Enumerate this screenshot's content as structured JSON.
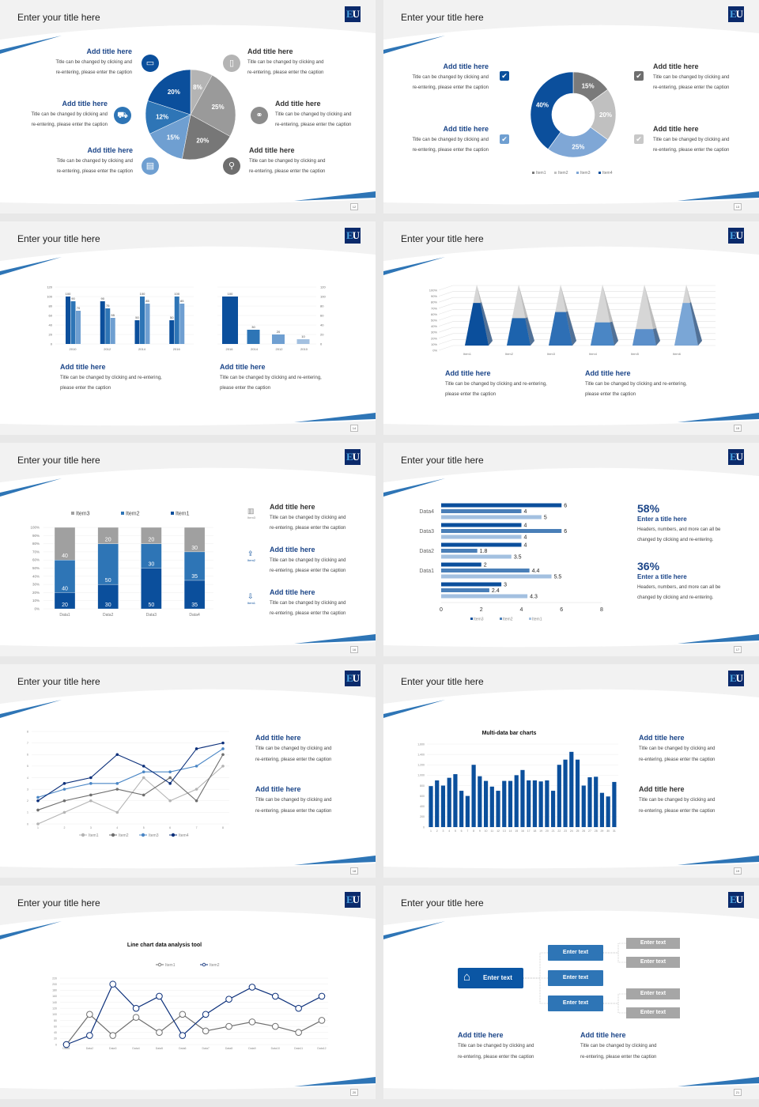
{
  "common": {
    "slide_title": "Enter your title here",
    "logo": "EU",
    "block_title": "Add title here",
    "cap1": "Title can be changed by clicking and",
    "cap2": "re-entering, please enter the caption",
    "capw1": "Title can be changed by clicking and re-entering,",
    "capw2": "please enter the caption"
  },
  "colors": {
    "dark_blue": "#0b4f9c",
    "mid_blue": "#2e75b6",
    "light_blue": "#6f9fd1",
    "pale_blue": "#a3c0e0",
    "title_blue": "#1b4588",
    "gray_light": "#b4b4b4",
    "gray": "#8c8c8c",
    "gray_dark": "#6e6e6e"
  },
  "pages": [
    "12",
    "13",
    "14",
    "15",
    "16",
    "17",
    "18",
    "19",
    "20",
    "21"
  ],
  "slide1": {
    "icons": [
      "monitor-icon",
      "car-icon",
      "book-icon",
      "phone-icon",
      "binoculars-icon",
      "bicycle-icon"
    ]
  },
  "slide5": {
    "icon_labels": [
      "Item3",
      "Item2",
      "Item1"
    ],
    "icons": [
      "bar-chart-icon",
      "upload-icon",
      "download-icon"
    ]
  },
  "slide6": {
    "stats": [
      {
        "value": "58%",
        "title": "Enter a title here",
        "line1": "Headers, numbers, and more can all be",
        "line2": "changed by clicking and re-entering."
      },
      {
        "value": "36%",
        "title": "Enter a title here",
        "line1": "Headers, numbers, and more can all be",
        "line2": "changed by clicking and re-entering."
      }
    ]
  },
  "slide10": {
    "root": "Enter text",
    "mid": [
      "Enter text",
      "Enter text",
      "Enter text"
    ],
    "leaves": [
      "Enter text",
      "Enter text",
      "Enter text",
      "Enter text"
    ]
  },
  "chart_data": [
    {
      "type": "pie",
      "slide": 1,
      "values": [
        8,
        25,
        20,
        15,
        12,
        20
      ],
      "labels": [
        "8%",
        "25%",
        "20%",
        "15%",
        "12%",
        "20%"
      ],
      "colors": [
        "#b4b4b4",
        "#9a9a9a",
        "#777777",
        "#6f9fd1",
        "#2e75b6",
        "#0b4f9c"
      ]
    },
    {
      "type": "pie",
      "variant": "donut",
      "slide": 2,
      "categories": [
        "Item1",
        "Item2",
        "Item3",
        "Item4"
      ],
      "values": [
        15,
        20,
        25,
        40
      ],
      "labels": [
        "15%",
        "20%",
        "25%",
        "40%"
      ],
      "colors": [
        "#7a7a7a",
        "#c0c0c0",
        "#7fa7d6",
        "#0b4f9c"
      ],
      "legend": "bottom"
    },
    {
      "type": "bar",
      "slide": 3,
      "categories": [
        "2010",
        "2012",
        "2014",
        "2016"
      ],
      "series": [
        {
          "values": [
            100,
            90,
            50,
            50
          ]
        },
        {
          "values": [
            90,
            75,
            100,
            100
          ]
        },
        {
          "values": [
            70,
            55,
            85,
            85
          ]
        }
      ],
      "ylim": [
        0,
        120
      ],
      "yticks": [
        0,
        20,
        40,
        60,
        80,
        100,
        120
      ]
    },
    {
      "type": "bar",
      "slide": 3,
      "categories": [
        "2016",
        "2014",
        "2012",
        "2010"
      ],
      "values": [
        100,
        30,
        20,
        10
      ],
      "ylim": [
        0,
        120
      ],
      "yticks": [
        0,
        20,
        40,
        60,
        80,
        100,
        120
      ],
      "axis": "right"
    },
    {
      "type": "bar",
      "variant": "3d-pyramid",
      "slide": 4,
      "categories": [
        "Item1",
        "Item2",
        "Item3",
        "Item4",
        "Item5",
        "Item6"
      ],
      "values": [
        70,
        45,
        55,
        38,
        27,
        70
      ],
      "ylim": [
        0,
        100
      ],
      "yticks": [
        "0%",
        "10%",
        "20%",
        "30%",
        "40%",
        "50%",
        "60%",
        "70%",
        "80%",
        "90%",
        "100%"
      ]
    },
    {
      "type": "bar",
      "variant": "stacked-100",
      "slide": 5,
      "categories": [
        "Data1",
        "Data2",
        "Data3",
        "Data4"
      ],
      "series": [
        {
          "name": "Item1",
          "values": [
            20,
            30,
            50,
            35
          ],
          "color": "#0b4f9c"
        },
        {
          "name": "Item2",
          "values": [
            40,
            50,
            30,
            35
          ],
          "color": "#2e75b6"
        },
        {
          "name": "Item3",
          "values": [
            40,
            20,
            20,
            30
          ],
          "color": "#a0a0a0"
        }
      ],
      "legend_order": [
        "Item3",
        "Item2",
        "Item1"
      ],
      "yticks": [
        "0%",
        "10%",
        "20%",
        "30%",
        "40%",
        "50%",
        "60%",
        "70%",
        "80%",
        "90%",
        "100%"
      ]
    },
    {
      "type": "bar",
      "variant": "horizontal",
      "slide": 6,
      "categories": [
        "Data4",
        "Data3",
        "Data2",
        "Data1",
        ""
      ],
      "series": [
        {
          "name": "Item3",
          "values": [
            6,
            4,
            4,
            2,
            3
          ],
          "color": "#0b4f9c"
        },
        {
          "name": "Item2",
          "values": [
            4,
            6,
            1.8,
            4.4,
            2.4
          ],
          "color": "#4a7fb8"
        },
        {
          "name": "Item1",
          "values": [
            5,
            4,
            3.5,
            5.5,
            4.3
          ],
          "color": "#a3c0e0"
        }
      ],
      "xlim": [
        0,
        8
      ],
      "xticks": [
        "0",
        "2",
        "4",
        "6",
        "8"
      ],
      "legend": "bottom"
    },
    {
      "type": "line",
      "slide": 7,
      "x": [
        "1",
        "2",
        "3",
        "4",
        "5",
        "6",
        "7",
        "8"
      ],
      "series": [
        {
          "name": "Item1",
          "values": [
            0,
            1,
            2,
            1,
            4,
            2,
            3,
            5
          ],
          "color": "#b4b4b4"
        },
        {
          "name": "Item2",
          "values": [
            1.2,
            2,
            2.5,
            3,
            2.5,
            4,
            2,
            6
          ],
          "color": "#6e6e6e"
        },
        {
          "name": "Item3",
          "values": [
            2.3,
            3,
            3.5,
            3.5,
            4.5,
            4.5,
            5,
            6.5
          ],
          "color": "#4a86c5"
        },
        {
          "name": "Item4",
          "values": [
            2,
            3.5,
            4,
            6,
            5,
            3.5,
            6.5,
            7
          ],
          "color": "#0b2f7a"
        }
      ],
      "ylim": [
        0,
        8
      ],
      "yticks": [
        "0",
        "1",
        "2",
        "3",
        "4",
        "5",
        "6",
        "7",
        "8"
      ],
      "legend": "bottom"
    },
    {
      "type": "bar",
      "slide": 8,
      "title": "Multi-data bar charts",
      "categories": [
        "1",
        "2",
        "3",
        "4",
        "5",
        "6",
        "7",
        "8",
        "9",
        "10",
        "11",
        "12",
        "13",
        "14",
        "15",
        "16",
        "17",
        "18",
        "19",
        "20",
        "21",
        "22",
        "23",
        "24",
        "25",
        "26",
        "27",
        "28",
        "29",
        "30",
        "31"
      ],
      "values": [
        790,
        900,
        800,
        950,
        1020,
        700,
        600,
        1200,
        980,
        890,
        780,
        700,
        890,
        890,
        1000,
        1100,
        900,
        900,
        880,
        900,
        700,
        1200,
        1300,
        1450,
        1300,
        800,
        960,
        970,
        660,
        590,
        870
      ],
      "ylim": [
        0,
        1600
      ],
      "yticks": [
        "0",
        "200",
        "400",
        "600",
        "800",
        "1,000",
        "1,200",
        "1,400",
        "1,600"
      ]
    },
    {
      "type": "line",
      "slide": 9,
      "title": "Line chart data analysis tool",
      "x": [
        "Data1",
        "Data2",
        "Data3",
        "Data4",
        "Data5",
        "Data6",
        "Data7",
        "Data8",
        "Data9",
        "Data10",
        "Data11",
        "Data12"
      ],
      "series": [
        {
          "name": "Item1",
          "values": [
            0,
            100,
            30,
            90,
            40,
            100,
            45,
            60,
            75,
            60,
            40,
            80
          ],
          "color": "#6e6e6e"
        },
        {
          "name": "Item2",
          "values": [
            0,
            30,
            200,
            120,
            160,
            30,
            100,
            150,
            190,
            160,
            120,
            160
          ],
          "color": "#0b2f7a"
        }
      ],
      "ylim": [
        0,
        220
      ],
      "yticks": [
        "0",
        "20",
        "40",
        "60",
        "80",
        "100",
        "120",
        "140",
        "160",
        "180",
        "200",
        "220"
      ],
      "legend": "top"
    }
  ]
}
